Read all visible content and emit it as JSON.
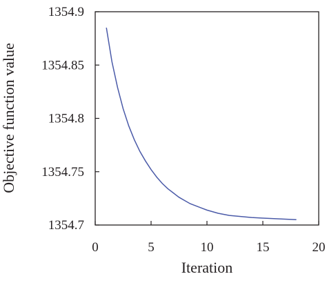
{
  "chart_data": {
    "type": "line",
    "xlabel": "Iteration",
    "ylabel": "Objective function value",
    "xlim": [
      0,
      20
    ],
    "ylim": [
      1354.7,
      1354.9
    ],
    "xticks": [
      0,
      5,
      10,
      15,
      20
    ],
    "yticks": [
      1354.7,
      1354.75,
      1354.8,
      1354.85,
      1354.9
    ],
    "xtick_labels": [
      "0",
      "5",
      "10",
      "15",
      "20"
    ],
    "ytick_labels": [
      "1354.7",
      "1354.75",
      "1354.8",
      "1354.85",
      "1354.9"
    ],
    "grid": false,
    "line_color": "#4a5aa8",
    "series": [
      {
        "x": [
          1,
          1.5,
          2,
          2.5,
          3,
          3.5,
          4,
          4.5,
          5,
          5.5,
          6,
          6.5,
          7,
          7.5,
          8,
          8.5,
          9,
          9.5,
          10,
          11,
          12,
          13,
          14,
          15,
          16,
          17,
          18
        ],
        "values": [
          1354.885,
          1354.853,
          1354.829,
          1354.809,
          1354.793,
          1354.78,
          1354.769,
          1354.76,
          1354.752,
          1354.745,
          1354.739,
          1354.734,
          1354.73,
          1354.726,
          1354.723,
          1354.72,
          1354.718,
          1354.716,
          1354.714,
          1354.711,
          1354.709,
          1354.708,
          1354.707,
          1354.7065,
          1354.706,
          1354.7055,
          1354.705
        ]
      }
    ]
  }
}
